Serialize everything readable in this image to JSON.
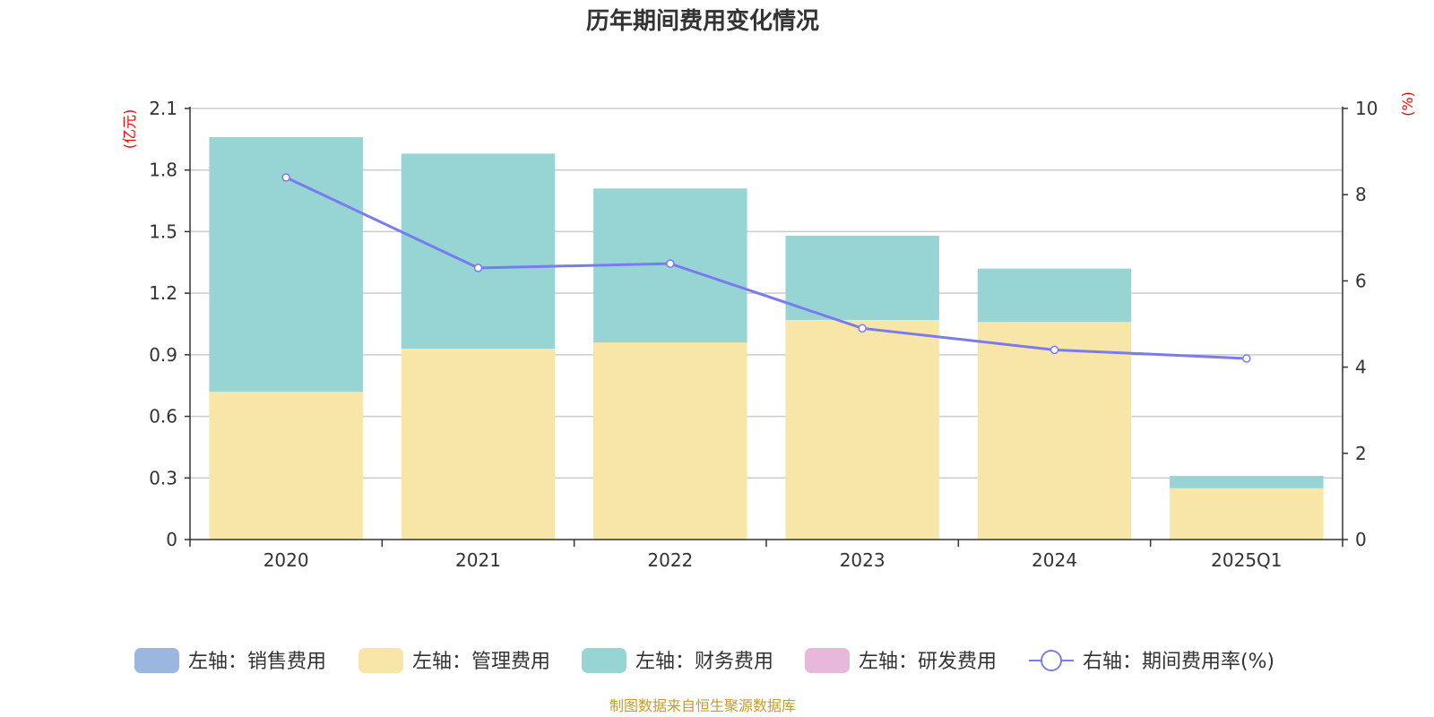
{
  "chart_data": {
    "type": "bar",
    "title": "历年期间费用变化情况",
    "categories": [
      "2020",
      "2021",
      "2022",
      "2023",
      "2024",
      "2025Q1"
    ],
    "left_axis": {
      "unit": "(亿元)",
      "ylim": [
        0,
        2.1
      ],
      "ticks": [
        "0",
        "0.3",
        "0.6",
        "0.9",
        "1.2",
        "1.5",
        "1.8",
        "2.1"
      ]
    },
    "right_axis": {
      "unit": "(%)",
      "ylim": [
        0,
        10
      ],
      "ticks": [
        "0",
        "2",
        "4",
        "6",
        "8",
        "10"
      ]
    },
    "stacked": true,
    "grid": true,
    "legend_position": "bottom",
    "series": [
      {
        "name": "左轴：销售费用",
        "type": "bar",
        "axis": "left",
        "color": "#9bb7e0",
        "values": [
          0,
          0,
          0,
          0,
          0,
          0
        ]
      },
      {
        "name": "左轴：管理费用",
        "type": "bar",
        "axis": "left",
        "color": "#f8e6a8",
        "values": [
          0.72,
          0.93,
          0.96,
          1.07,
          1.06,
          0.25
        ]
      },
      {
        "name": "左轴：财务费用",
        "type": "bar",
        "axis": "left",
        "color": "#97d4d4",
        "values": [
          1.24,
          0.95,
          0.75,
          0.41,
          0.26,
          0.06
        ]
      },
      {
        "name": "左轴：研发费用",
        "type": "bar",
        "axis": "left",
        "color": "#e8b8da",
        "values": [
          0,
          0,
          0,
          0,
          0,
          0
        ]
      },
      {
        "name": "右轴：期间费用率(%)",
        "type": "line",
        "axis": "right",
        "color": "#7b7bf0",
        "values": [
          8.4,
          6.3,
          6.4,
          4.9,
          4.4,
          4.2
        ]
      }
    ]
  },
  "footer": {
    "source": "制图数据来自恒生聚源数据库"
  }
}
